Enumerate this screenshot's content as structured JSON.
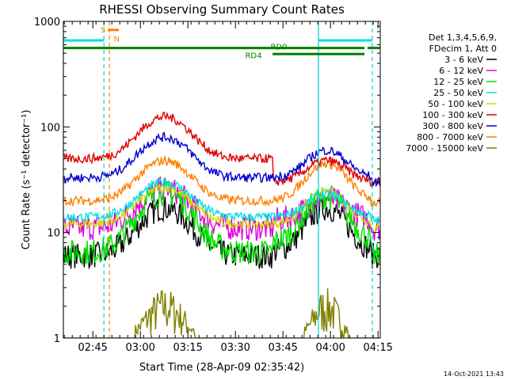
{
  "chart_data": {
    "type": "line",
    "title": "RHESSI Observing Summary Count Rates",
    "xlabel": "Start Time (28-Apr-09 02:35:42)",
    "ylabel": "Count Rate (s⁻¹ detector⁻¹)",
    "x_unit": "minutes after 02:35:42 UT",
    "xlim": [
      0,
      100
    ],
    "ylim": [
      1,
      1000
    ],
    "y_scale": "log",
    "grid": false,
    "x_ticks": [
      {
        "label": "02:45",
        "value": 9.3
      },
      {
        "label": "03:00",
        "value": 24.3
      },
      {
        "label": "03:15",
        "value": 39.3
      },
      {
        "label": "03:30",
        "value": 54.3
      },
      {
        "label": "03:45",
        "value": 69.3
      },
      {
        "label": "04:00",
        "value": 84.3
      },
      {
        "label": "04:15",
        "value": 99.3
      }
    ],
    "y_ticks": [
      {
        "label": "1",
        "value": 1
      },
      {
        "label": "10",
        "value": 10
      },
      {
        "label": "100",
        "value": 100
      },
      {
        "label": "1000",
        "value": 1000
      }
    ],
    "legend": {
      "position": "right",
      "header": [
        "Det 1,3,4,5,6,9,",
        "FDecim 1, Att 0"
      ]
    },
    "series": [
      {
        "name": "3 - 6 keV",
        "color": "#000000",
        "base1": 6,
        "peak1": 17,
        "base2": 6.5,
        "peak2": 17,
        "end": 6
      },
      {
        "name": "6 - 12 keV",
        "color": "#e000e0",
        "base1": 11,
        "peak1": 26,
        "base2": 13,
        "peak2": 21,
        "end": 11
      },
      {
        "name": "12 - 25 keV",
        "color": "#00e000",
        "base1": 6.5,
        "peak1": 24,
        "base2": 8,
        "peak2": 22,
        "end": 6
      },
      {
        "name": "25 - 50 keV",
        "color": "#00e0e0",
        "base1": 14,
        "peak1": 30,
        "base2": 14,
        "peak2": 23,
        "end": 13
      },
      {
        "name": "50 - 100 keV",
        "color": "#d8d800",
        "base1": 12,
        "peak1": 27,
        "base2": 12,
        "peak2": 24,
        "end": 11
      },
      {
        "name": "100 - 300 keV",
        "color": "#e00000",
        "base1": 50,
        "peak1": 125,
        "base2": 30,
        "peak2": 48,
        "end": 30
      },
      {
        "name": "300 - 800 keV",
        "color": "#0000d0",
        "base1": 33,
        "peak1": 80,
        "base2": 33,
        "peak2": 60,
        "end": 30
      },
      {
        "name": "800 - 7000 keV",
        "color": "#ff8000",
        "base1": 20,
        "peak1": 48,
        "base2": 20,
        "peak2": 45,
        "end": 19
      },
      {
        "name": "7000 - 15000 keV",
        "color": "#808000",
        "base1": 1,
        "peak1": 3,
        "base2": 1,
        "peak2": 2.7,
        "end": 1
      }
    ],
    "annotations": {
      "vertical_lines": [
        {
          "x": 0,
          "color": "#00d0d0",
          "style": "solid"
        },
        {
          "x": 12.8,
          "color": "#00d0d0",
          "style": "dashed"
        },
        {
          "x": 14.5,
          "color": "#ff8000",
          "style": "dashed"
        },
        {
          "x": 80.5,
          "color": "#00d0d0",
          "style": "solid"
        },
        {
          "x": 97.5,
          "color": "#00d0d0",
          "style": "dashed"
        }
      ],
      "bars": [
        {
          "label": "",
          "color": "#00e0e0",
          "y": 660,
          "segments": [
            [
              0,
              12.8
            ],
            [
              80.5,
              97.5
            ]
          ]
        },
        {
          "label": "S",
          "color": "#ff8000",
          "y": 830,
          "segments": [
            [
              14,
              17.5
            ]
          ]
        },
        {
          "label": "N",
          "color": "#ff8000",
          "y": 700,
          "segments": []
        },
        {
          "label": "RD0",
          "color": "#008000",
          "y": 560,
          "segments": [
            [
              0,
              95
            ],
            [
              96,
              100
            ]
          ]
        },
        {
          "label": "RD4",
          "color": "#008000",
          "y": 490,
          "segments": [
            [
              66,
              95
            ]
          ]
        }
      ]
    }
  },
  "footer_timestamp": "14-Oct-2021 13:43"
}
